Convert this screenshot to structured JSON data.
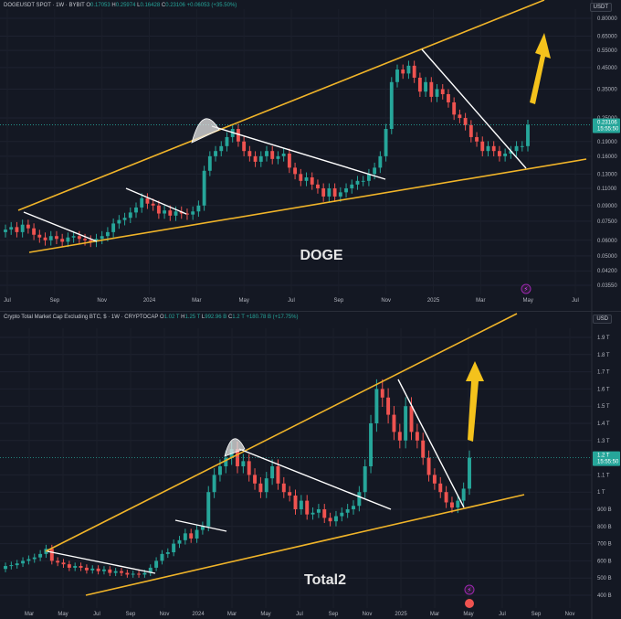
{
  "chart_data": [
    {
      "type": "candlestick",
      "header": {
        "symbol": "DOGEUSDT SPOT · 1W · BYBIT",
        "o_label": "O",
        "o_value": "0.17053",
        "h_label": "H",
        "h_value": "0.25974",
        "l_label": "L",
        "l_value": "0.16428",
        "c_label": "C",
        "c_value": "0.23106",
        "change": "+0.06053 (+35.50%)"
      },
      "currency": "USDT",
      "watermark": "DOGE",
      "y_ticks": [
        "0.80000",
        "0.65000",
        "0.55000",
        "0.45000",
        "0.35000",
        "0.25000",
        "0.19000",
        "0.16000",
        "0.13000",
        "0.11000",
        "0.09000",
        "0.07500",
        "0.06000",
        "0.05000",
        "0.04200",
        "0.03550"
      ],
      "y_tick_values": [
        0.8,
        0.65,
        0.55,
        0.45,
        0.35,
        0.25,
        0.19,
        0.16,
        0.13,
        0.11,
        0.09,
        0.075,
        0.06,
        0.05,
        0.042,
        0.0355
      ],
      "x_ticks": [
        "Jul",
        "Sep",
        "Nov",
        "2024",
        "Mar",
        "May",
        "Jul",
        "Sep",
        "Nov",
        "2025",
        "Mar",
        "May",
        "Jul"
      ],
      "last_price": "0.23106",
      "countdown": "15:55:50",
      "log_scale": true,
      "closes": [
        0.068,
        0.07,
        0.066,
        0.072,
        0.069,
        0.064,
        0.062,
        0.06,
        0.063,
        0.061,
        0.059,
        0.062,
        0.063,
        0.061,
        0.06,
        0.059,
        0.061,
        0.063,
        0.066,
        0.073,
        0.076,
        0.078,
        0.083,
        0.088,
        0.098,
        0.092,
        0.09,
        0.082,
        0.085,
        0.08,
        0.084,
        0.082,
        0.081,
        0.084,
        0.09,
        0.135,
        0.16,
        0.17,
        0.18,
        0.2,
        0.22,
        0.19,
        0.17,
        0.16,
        0.15,
        0.16,
        0.17,
        0.155,
        0.16,
        0.165,
        0.14,
        0.13,
        0.12,
        0.125,
        0.115,
        0.11,
        0.1,
        0.11,
        0.1,
        0.105,
        0.11,
        0.115,
        0.12,
        0.12,
        0.13,
        0.14,
        0.16,
        0.22,
        0.38,
        0.44,
        0.42,
        0.46,
        0.4,
        0.34,
        0.38,
        0.32,
        0.35,
        0.33,
        0.3,
        0.26,
        0.25,
        0.23,
        0.2,
        0.19,
        0.17,
        0.18,
        0.17,
        0.16,
        0.165,
        0.17,
        0.18,
        0.18,
        0.231
      ]
    },
    {
      "type": "candlestick",
      "header": {
        "symbol": "Crypto Total Market Cap Excluding BTC, $ · 1W · CRYPTOCAP",
        "o_label": "O",
        "o_value": "1.02 T",
        "h_label": "H",
        "h_value": "1.25 T",
        "l_label": "L",
        "l_value": "992.96 B",
        "c_label": "C",
        "c_value": "1.2 T",
        "change": "+180.78 B (+17.75%)"
      },
      "currency": "USD",
      "watermark": "Total2",
      "y_ticks": [
        "1.9 T",
        "1.8 T",
        "1.7 T",
        "1.6 T",
        "1.5 T",
        "1.4 T",
        "1.3 T",
        "1.1 T",
        "1 T",
        "900 B",
        "800 B",
        "700 B",
        "600 B",
        "500 B",
        "400 B"
      ],
      "y_tick_values": [
        1900,
        1800,
        1700,
        1600,
        1500,
        1400,
        1300,
        1100,
        1000,
        900,
        800,
        700,
        600,
        500,
        400
      ],
      "x_ticks": [
        "Mar",
        "May",
        "Jul",
        "Sep",
        "Nov",
        "2024",
        "Mar",
        "May",
        "Jul",
        "Sep",
        "Nov",
        "2025",
        "Mar",
        "May",
        "Jul",
        "Sep",
        "Nov"
      ],
      "last_price": "1.2 T",
      "countdown": "15:55:50",
      "log_scale": false,
      "closes": [
        570,
        575,
        585,
        600,
        610,
        620,
        640,
        670,
        600,
        590,
        580,
        560,
        570,
        560,
        545,
        555,
        540,
        550,
        530,
        540,
        530,
        520,
        525,
        520,
        530,
        560,
        600,
        640,
        650,
        700,
        720,
        760,
        730,
        780,
        800,
        1000,
        1100,
        1150,
        1200,
        1250,
        1150,
        1180,
        1100,
        1050,
        1000,
        1080,
        1150,
        1050,
        1000,
        980,
        900,
        950,
        870,
        880,
        900,
        850,
        830,
        860,
        880,
        900,
        920,
        1000,
        1150,
        1400,
        1600,
        1550,
        1450,
        1350,
        1300,
        1500,
        1350,
        1300,
        1200,
        1100,
        1050,
        1000,
        940,
        910,
        950,
        1020,
        1200
      ]
    }
  ],
  "events": {
    "lightning_badge_top": "⚡",
    "lightning_badge_bottom": "⚡"
  }
}
